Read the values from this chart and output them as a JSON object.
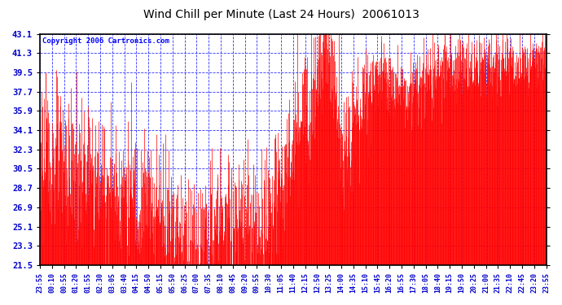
{
  "title": "Wind Chill per Minute (Last 24 Hours)  20061013",
  "copyright": "Copyright 2006 Cartronics.com",
  "yticks": [
    21.5,
    23.3,
    25.1,
    26.9,
    28.7,
    30.5,
    32.3,
    34.1,
    35.9,
    37.7,
    39.5,
    41.3,
    43.1
  ],
  "ymin": 21.5,
  "ymax": 43.1,
  "xtick_labels": [
    "23:55",
    "00:10",
    "00:55",
    "01:20",
    "01:55",
    "02:30",
    "03:05",
    "03:40",
    "04:15",
    "04:50",
    "05:15",
    "05:50",
    "06:25",
    "07:00",
    "07:35",
    "08:10",
    "08:45",
    "09:20",
    "09:55",
    "10:30",
    "11:05",
    "11:40",
    "12:15",
    "12:50",
    "13:25",
    "14:00",
    "14:35",
    "15:10",
    "15:45",
    "16:20",
    "16:55",
    "17:30",
    "18:05",
    "18:40",
    "19:15",
    "19:50",
    "20:25",
    "21:00",
    "21:35",
    "22:10",
    "22:45",
    "23:20",
    "23:55"
  ],
  "line_color": "red",
  "grid_color": "#0000ff",
  "bg_color": "white",
  "plot_bg": "white",
  "border_color": "black",
  "title_color": "black",
  "copyright_color": "blue",
  "ylabel_color": "#0000cc",
  "figwidth": 6.9,
  "figheight": 3.75,
  "dpi": 100
}
